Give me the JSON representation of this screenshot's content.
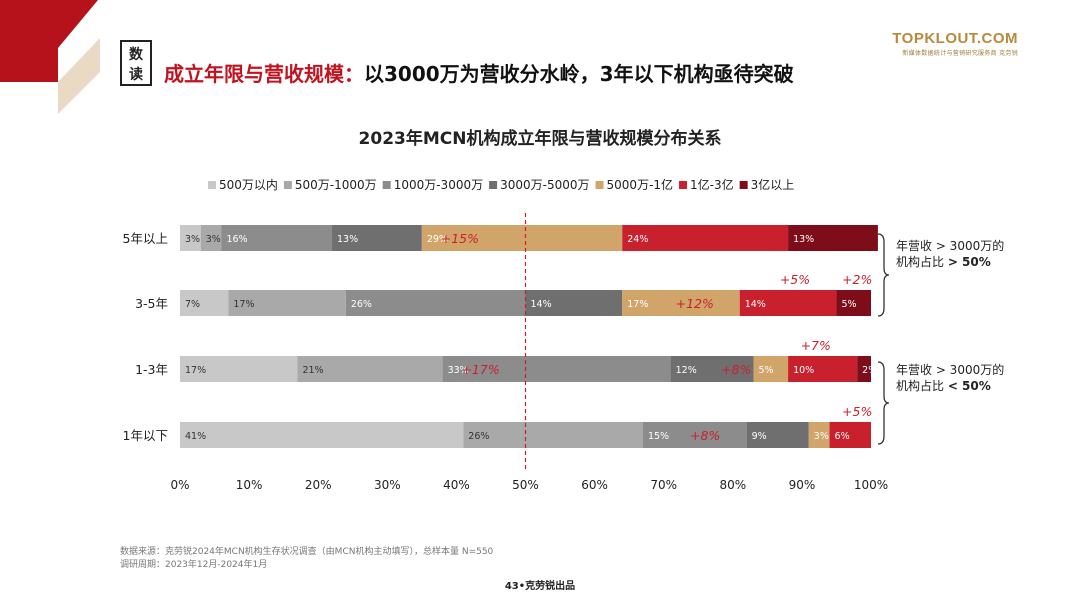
{
  "header": {
    "tag_line1": "数",
    "tag_line2": "读",
    "headline_red": "成立年限与营收规模：",
    "headline_black": "以3000万为营收分水岭，3年以下机构亟待突破"
  },
  "logo": {
    "main": "TOPKLOUT.COM",
    "sub": "新媒体数据统计与营销研究服务商  克劳锐"
  },
  "chart_data": {
    "type": "bar",
    "orientation": "horizontal",
    "stacked": true,
    "title": "2023年MCN机构成立年限与营收规模分布关系",
    "categories": [
      "5年以上",
      "3-5年",
      "1-3年",
      "1年以下"
    ],
    "series": [
      {
        "name": "500万以内",
        "color": "#c8c8c8",
        "values": [
          3,
          7,
          17,
          41
        ],
        "labels": [
          "3%",
          "7%",
          "17%",
          "41%"
        ]
      },
      {
        "name": "500万-1000万",
        "color": "#a9a9a9",
        "values": [
          3,
          17,
          21,
          26
        ],
        "labels": [
          "3%",
          "17%",
          "21%",
          "26%"
        ]
      },
      {
        "name": "1000万-3000万",
        "color": "#8c8c8c",
        "values": [
          16,
          26,
          33,
          15
        ],
        "labels": [
          "16%",
          "26%",
          "33%",
          "15%"
        ]
      },
      {
        "name": "3000万-5000万",
        "color": "#6f6f6f",
        "values": [
          13,
          14,
          12,
          9
        ],
        "labels": [
          "13%",
          "14%",
          "12%",
          "9%"
        ]
      },
      {
        "name": "5000万-1亿",
        "color": "#d1a56a",
        "values": [
          29,
          17,
          5,
          3
        ],
        "labels": [
          "29%",
          "17%",
          "5%",
          "3%"
        ]
      },
      {
        "name": "1亿-3亿",
        "color": "#c8202d",
        "values": [
          24,
          14,
          10,
          6
        ],
        "labels": [
          "24%",
          "14%",
          "10%",
          "6%"
        ]
      },
      {
        "name": "3亿以上",
        "color": "#7d0e19",
        "values": [
          13,
          5,
          2,
          0
        ],
        "labels": [
          "13%",
          "5%",
          "2%",
          ""
        ]
      }
    ],
    "xlim": [
      0,
      100
    ],
    "xticks": [
      "0%",
      "10%",
      "20%",
      "30%",
      "40%",
      "50%",
      "60%",
      "70%",
      "80%",
      "90%",
      "100%"
    ],
    "reference_line": 50,
    "annotations": [
      {
        "row": 0,
        "at": 40.5,
        "text": "+15%",
        "placement": "inside"
      },
      {
        "row": 1,
        "at": 74.5,
        "text": "+12%",
        "placement": "inside"
      },
      {
        "row": 1,
        "at": 89,
        "text": "+5%",
        "placement": "above"
      },
      {
        "row": 1,
        "at": 98,
        "text": "+2%",
        "placement": "above"
      },
      {
        "row": 2,
        "at": 43.5,
        "text": "+17%",
        "placement": "inside"
      },
      {
        "row": 2,
        "at": 80.5,
        "text": "+8%",
        "placement": "inside"
      },
      {
        "row": 2,
        "at": 92,
        "text": "+7%",
        "placement": "above"
      },
      {
        "row": 3,
        "at": 76,
        "text": "+8%",
        "placement": "inside"
      },
      {
        "row": 3,
        "at": 98,
        "text": "+5%",
        "placement": "above"
      }
    ]
  },
  "side_notes": [
    {
      "line1": "年营收 > 3000万的",
      "line2_prefix": "机构占比 ",
      "line2_bold": "> 50%"
    },
    {
      "line1": "年营收 > 3000万的",
      "line2_prefix": "机构占比 ",
      "line2_bold": "< 50%"
    }
  ],
  "footer": {
    "source": "数据来源：克劳锐2024年MCN机构生存状况调查（由MCN机构主动填写），总样本量 N=550",
    "period": "调研周期：2023年12月-2024年1月",
    "page": "43•克劳锐出品"
  },
  "colors": {
    "accent_red": "#c1121f",
    "annotation_red": "#c8202d"
  }
}
